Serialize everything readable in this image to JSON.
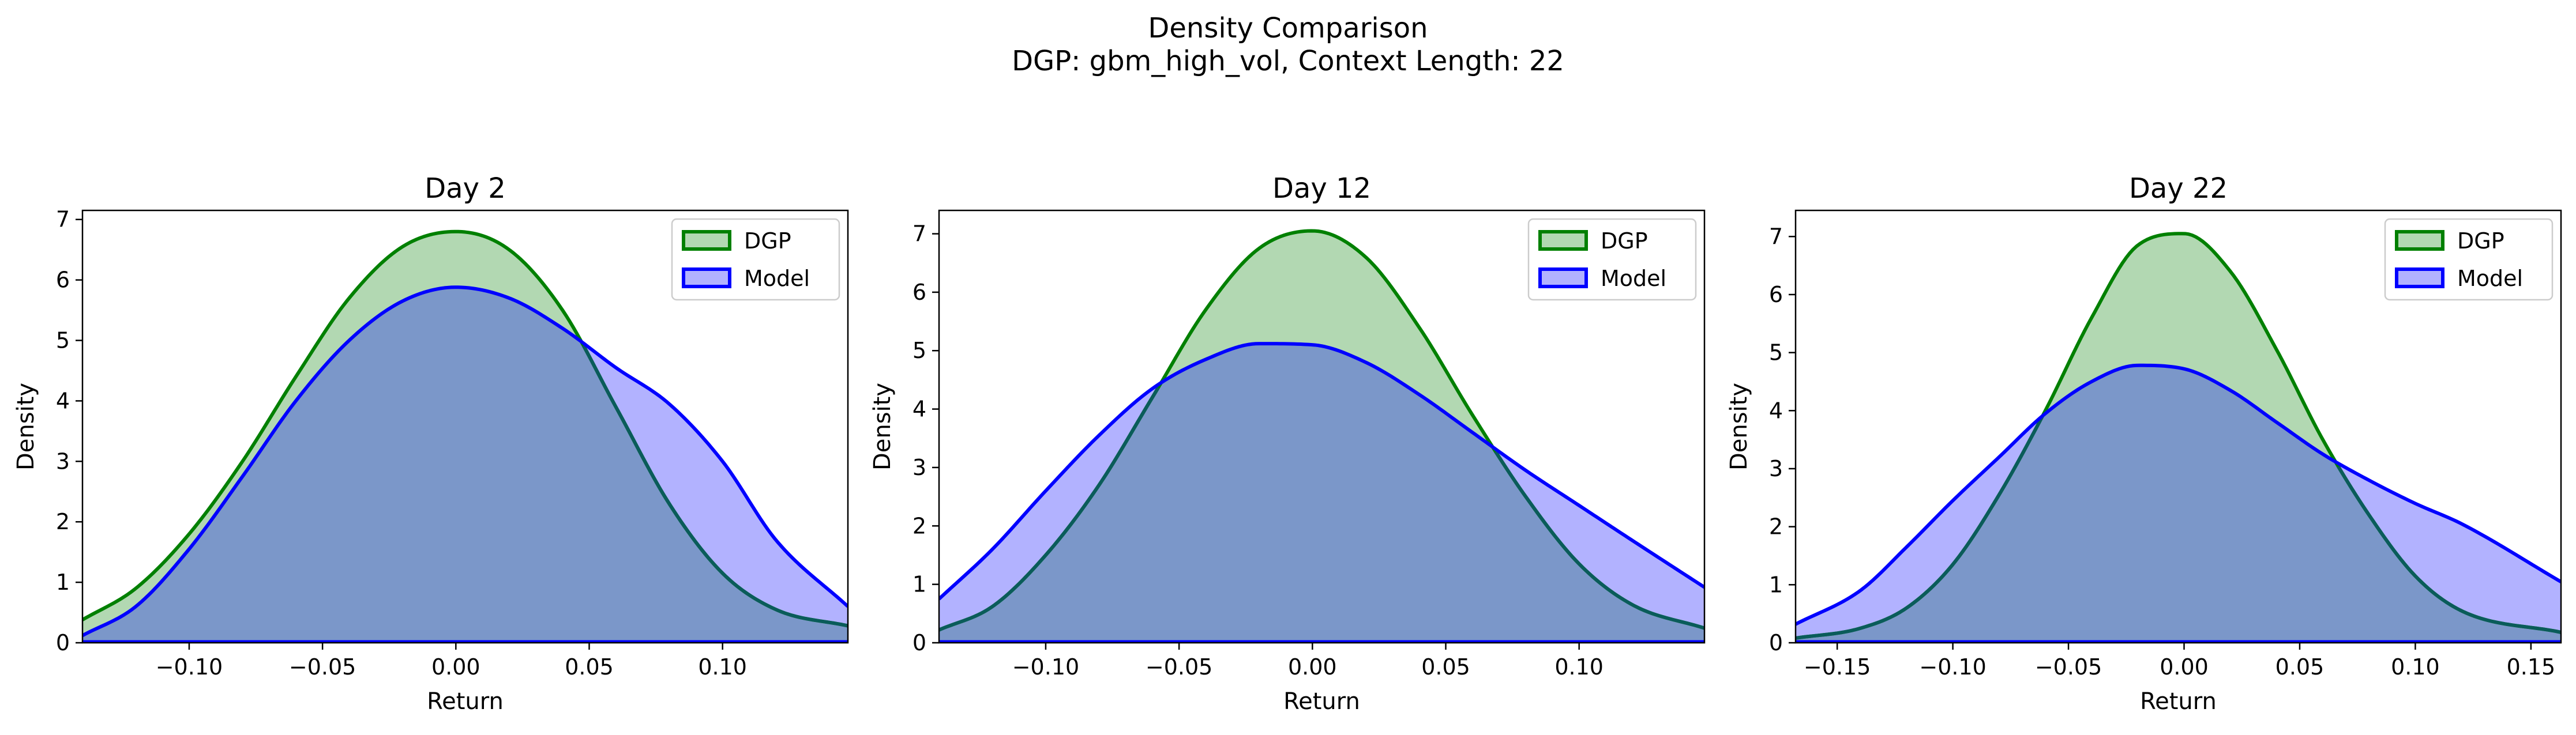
{
  "figure": {
    "title_line1": "Density Comparison",
    "title_line2": "DGP: gbm_high_vol, Context Length: 22"
  },
  "colors": {
    "dgp_line": "#008000",
    "dgp_fill": "#b2d8b2",
    "model_line": "#0000ff",
    "model_fill": "#b2b2ff",
    "overlap": "#7b97c9"
  },
  "chart_data": [
    {
      "type": "area",
      "title": "Day 2",
      "xlabel": "Return",
      "ylabel": "Density",
      "xlim": [
        -0.14,
        0.147
      ],
      "ylim": [
        0,
        7.15
      ],
      "xticks": [
        -0.1,
        -0.05,
        0.0,
        0.05,
        0.1
      ],
      "xtick_labels": [
        "−0.10",
        "−0.05",
        "0.00",
        "0.05",
        "0.10"
      ],
      "yticks": [
        0,
        1,
        2,
        3,
        4,
        5,
        6,
        7
      ],
      "ytick_labels": [
        "0",
        "1",
        "2",
        "3",
        "4",
        "5",
        "6",
        "7"
      ],
      "grid": false,
      "legend_position": "top-right",
      "series": [
        {
          "name": "DGP",
          "x": [
            -0.14,
            -0.12,
            -0.1,
            -0.08,
            -0.06,
            -0.04,
            -0.02,
            0.0,
            0.02,
            0.04,
            0.06,
            0.08,
            0.1,
            0.12,
            0.147
          ],
          "y": [
            0.38,
            0.9,
            1.8,
            3.0,
            4.4,
            5.7,
            6.55,
            6.8,
            6.5,
            5.5,
            3.9,
            2.3,
            1.15,
            0.55,
            0.28
          ]
        },
        {
          "name": "Model",
          "x": [
            -0.14,
            -0.12,
            -0.1,
            -0.08,
            -0.06,
            -0.04,
            -0.02,
            0.0,
            0.02,
            0.04,
            0.06,
            0.08,
            0.1,
            0.12,
            0.147
          ],
          "y": [
            0.12,
            0.6,
            1.55,
            2.75,
            4.0,
            5.0,
            5.65,
            5.88,
            5.7,
            5.2,
            4.55,
            3.95,
            3.0,
            1.7,
            0.6
          ]
        }
      ]
    },
    {
      "type": "area",
      "title": "Day 12",
      "xlabel": "Return",
      "ylabel": "Density",
      "xlim": [
        -0.14,
        0.147
      ],
      "ylim": [
        0,
        7.4
      ],
      "xticks": [
        -0.1,
        -0.05,
        0.0,
        0.05,
        0.1
      ],
      "xtick_labels": [
        "−0.10",
        "−0.05",
        "0.00",
        "0.05",
        "0.10"
      ],
      "yticks": [
        0,
        1,
        2,
        3,
        4,
        5,
        6,
        7
      ],
      "ytick_labels": [
        "0",
        "1",
        "2",
        "3",
        "4",
        "5",
        "6",
        "7"
      ],
      "grid": false,
      "legend_position": "top-right",
      "series": [
        {
          "name": "DGP",
          "x": [
            -0.14,
            -0.12,
            -0.1,
            -0.08,
            -0.06,
            -0.04,
            -0.02,
            0.0,
            0.02,
            0.04,
            0.06,
            0.08,
            0.1,
            0.12,
            0.147
          ],
          "y": [
            0.22,
            0.62,
            1.5,
            2.7,
            4.2,
            5.7,
            6.75,
            7.05,
            6.6,
            5.4,
            3.9,
            2.5,
            1.35,
            0.65,
            0.25
          ]
        },
        {
          "name": "Model",
          "x": [
            -0.14,
            -0.12,
            -0.1,
            -0.08,
            -0.06,
            -0.04,
            -0.02,
            0.0,
            0.02,
            0.04,
            0.06,
            0.08,
            0.1,
            0.12,
            0.147
          ],
          "y": [
            0.75,
            1.6,
            2.6,
            3.55,
            4.35,
            4.85,
            5.12,
            5.1,
            4.8,
            4.25,
            3.6,
            2.95,
            2.35,
            1.75,
            0.95
          ]
        }
      ]
    },
    {
      "type": "area",
      "title": "Day 22",
      "xlabel": "Return",
      "ylabel": "Density",
      "xlim": [
        -0.168,
        0.163
      ],
      "ylim": [
        0,
        7.45
      ],
      "xticks": [
        -0.15,
        -0.1,
        -0.05,
        0.0,
        0.05,
        0.1,
        0.15
      ],
      "xtick_labels": [
        "−0.15",
        "−0.10",
        "−0.05",
        "0.00",
        "0.05",
        "0.10",
        "0.15"
      ],
      "yticks": [
        0,
        1,
        2,
        3,
        4,
        5,
        6,
        7
      ],
      "ytick_labels": [
        "0",
        "1",
        "2",
        "3",
        "4",
        "5",
        "6",
        "7"
      ],
      "grid": false,
      "legend_position": "top-right",
      "series": [
        {
          "name": "DGP",
          "x": [
            -0.168,
            -0.14,
            -0.12,
            -0.1,
            -0.08,
            -0.06,
            -0.04,
            -0.02,
            0.0,
            0.02,
            0.04,
            0.06,
            0.08,
            0.1,
            0.12,
            0.163
          ],
          "y": [
            0.08,
            0.25,
            0.6,
            1.35,
            2.55,
            4.0,
            5.6,
            6.85,
            7.05,
            6.4,
            5.05,
            3.5,
            2.2,
            1.15,
            0.55,
            0.18
          ]
        },
        {
          "name": "Model",
          "x": [
            -0.168,
            -0.14,
            -0.12,
            -0.1,
            -0.08,
            -0.06,
            -0.04,
            -0.02,
            0.0,
            0.02,
            0.04,
            0.06,
            0.08,
            0.1,
            0.12,
            0.163
          ],
          "y": [
            0.32,
            0.9,
            1.65,
            2.45,
            3.2,
            3.95,
            4.5,
            4.78,
            4.72,
            4.35,
            3.8,
            3.25,
            2.8,
            2.4,
            2.05,
            1.05
          ]
        }
      ]
    }
  ]
}
